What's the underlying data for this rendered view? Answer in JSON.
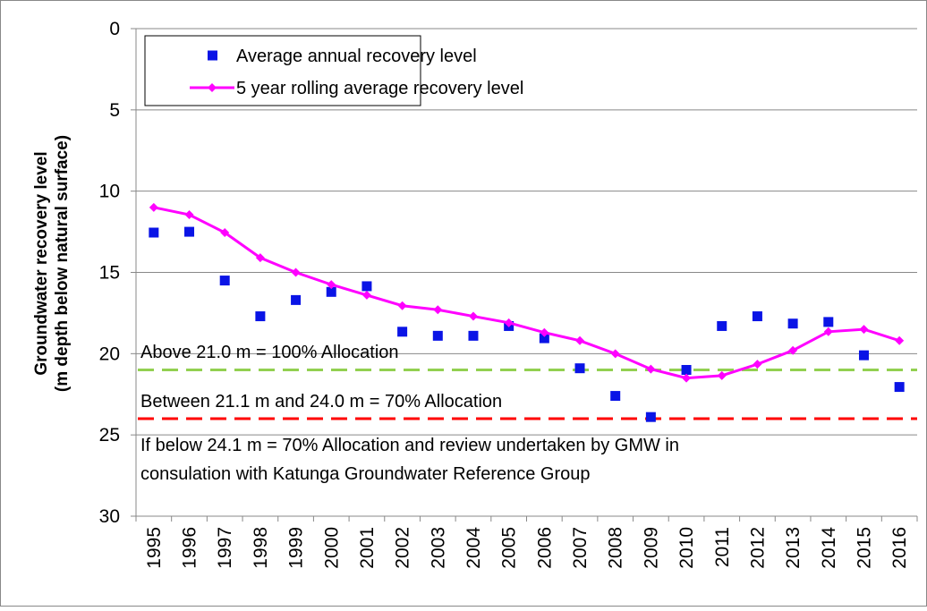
{
  "chart_data": {
    "type": "line",
    "y_label": [
      "Groundwater recovery level",
      "(m depth below natural surface)"
    ],
    "categories": [
      "1995",
      "1996",
      "1997",
      "1998",
      "1999",
      "2000",
      "2001",
      "2002",
      "2003",
      "2004",
      "2005",
      "2006",
      "2007",
      "2008",
      "2009",
      "2010",
      "2011",
      "2012",
      "2013",
      "2014",
      "2015",
      "2016"
    ],
    "series": [
      {
        "name": "Average annual recovery level",
        "color": "#0a14e6",
        "mode": "markers",
        "values": [
          12.55,
          12.5,
          15.5,
          17.7,
          16.7,
          16.2,
          15.85,
          18.65,
          18.9,
          18.9,
          18.3,
          19.05,
          20.9,
          22.6,
          23.9,
          21.0,
          18.3,
          17.7,
          18.15,
          18.05,
          20.1,
          22.05
        ]
      },
      {
        "name": "5 year rolling average recovery level",
        "color": "#ff00ff",
        "mode": "lines+markers",
        "values": [
          11.0,
          11.45,
          12.55,
          14.1,
          15.0,
          15.75,
          16.4,
          17.05,
          17.3,
          17.7,
          18.1,
          18.7,
          19.2,
          20.0,
          20.95,
          21.5,
          21.35,
          20.65,
          19.8,
          18.65,
          18.5,
          19.2
        ]
      }
    ],
    "reference_lines": [
      {
        "value": 21,
        "color": "#92d050"
      },
      {
        "value": 24,
        "color": "#ff0000"
      }
    ],
    "annotations": [
      "Above 21.0 m = 100% Allocation",
      "Between 21.1 m and 24.0 m = 70% Allocation",
      "If below 24.1 m = 70% Allocation and review undertaken by GMW in",
      "consulation with Katunga Groundwater Reference Group"
    ],
    "ylim": [
      0,
      30
    ],
    "y_reversed": true,
    "yticks": [
      0,
      5,
      10,
      15,
      20,
      25,
      30
    ],
    "grid": true,
    "legend": "top-left"
  }
}
